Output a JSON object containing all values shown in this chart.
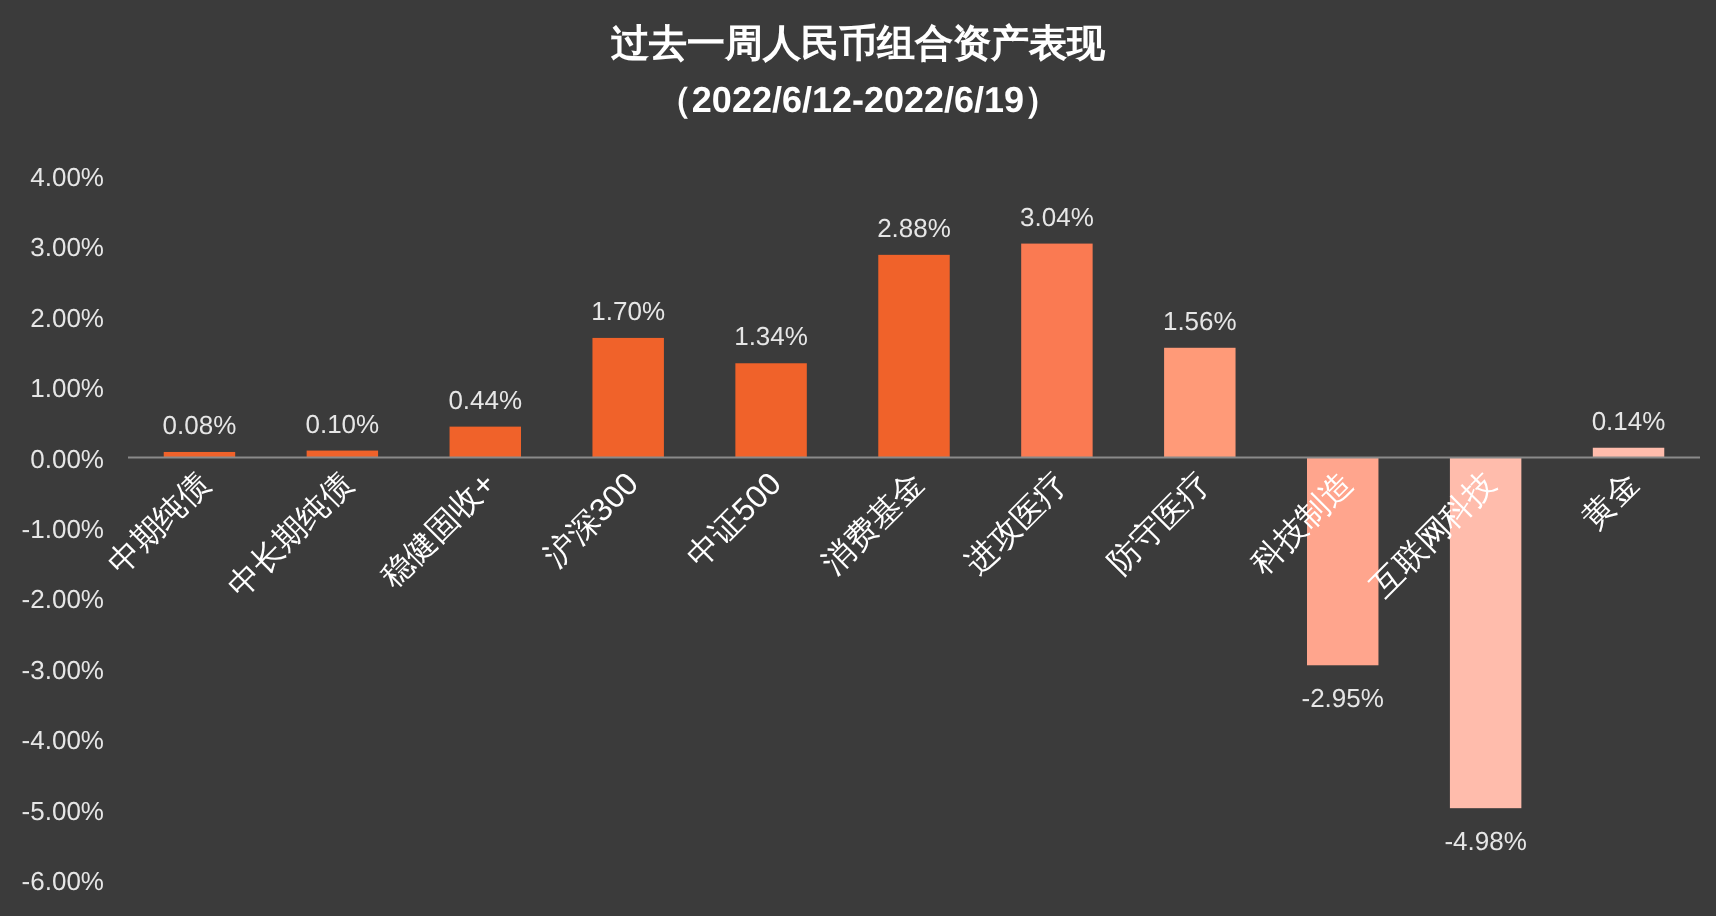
{
  "chart_data": {
    "type": "bar",
    "title": "过去一周人民币组合资产表现",
    "subtitle": "（2022/6/12-2022/6/19）",
    "categories": [
      "中期纯债",
      "中长期纯债",
      "稳健固收+",
      "沪深300",
      "中证500",
      "消费基金",
      "进攻医疗",
      "防守医疗",
      "科技制造",
      "互联网科技",
      "黄金"
    ],
    "values": [
      0.08,
      0.1,
      0.44,
      1.7,
      1.34,
      2.88,
      3.04,
      1.56,
      -2.95,
      -4.98,
      0.14
    ],
    "value_labels": [
      "0.08%",
      "0.10%",
      "0.44%",
      "1.70%",
      "1.34%",
      "2.88%",
      "3.04%",
      "1.56%",
      "-2.95%",
      "-4.98%",
      "0.14%"
    ],
    "colors": [
      "#f0622a",
      "#f0622a",
      "#f0622a",
      "#f0622a",
      "#f0622a",
      "#f0622a",
      "#fa7a52",
      "#ff9a78",
      "#ffa58d",
      "#ffbcac",
      "#ffbcac"
    ],
    "ylim": [
      -6,
      4
    ],
    "yticks": [
      {
        "value": -6,
        "label": "-6.00%"
      },
      {
        "value": -5,
        "label": "-5.00%"
      },
      {
        "value": -4,
        "label": "-4.00%"
      },
      {
        "value": -3,
        "label": "-3.00%"
      },
      {
        "value": -2,
        "label": "-2.00%"
      },
      {
        "value": -1,
        "label": "-1.00%"
      },
      {
        "value": 0,
        "label": "0.00%"
      },
      {
        "value": 1,
        "label": "1.00%"
      },
      {
        "value": 2,
        "label": "2.00%"
      },
      {
        "value": 3,
        "label": "3.00%"
      },
      {
        "value": 4,
        "label": "4.00%"
      }
    ],
    "grid": false
  }
}
